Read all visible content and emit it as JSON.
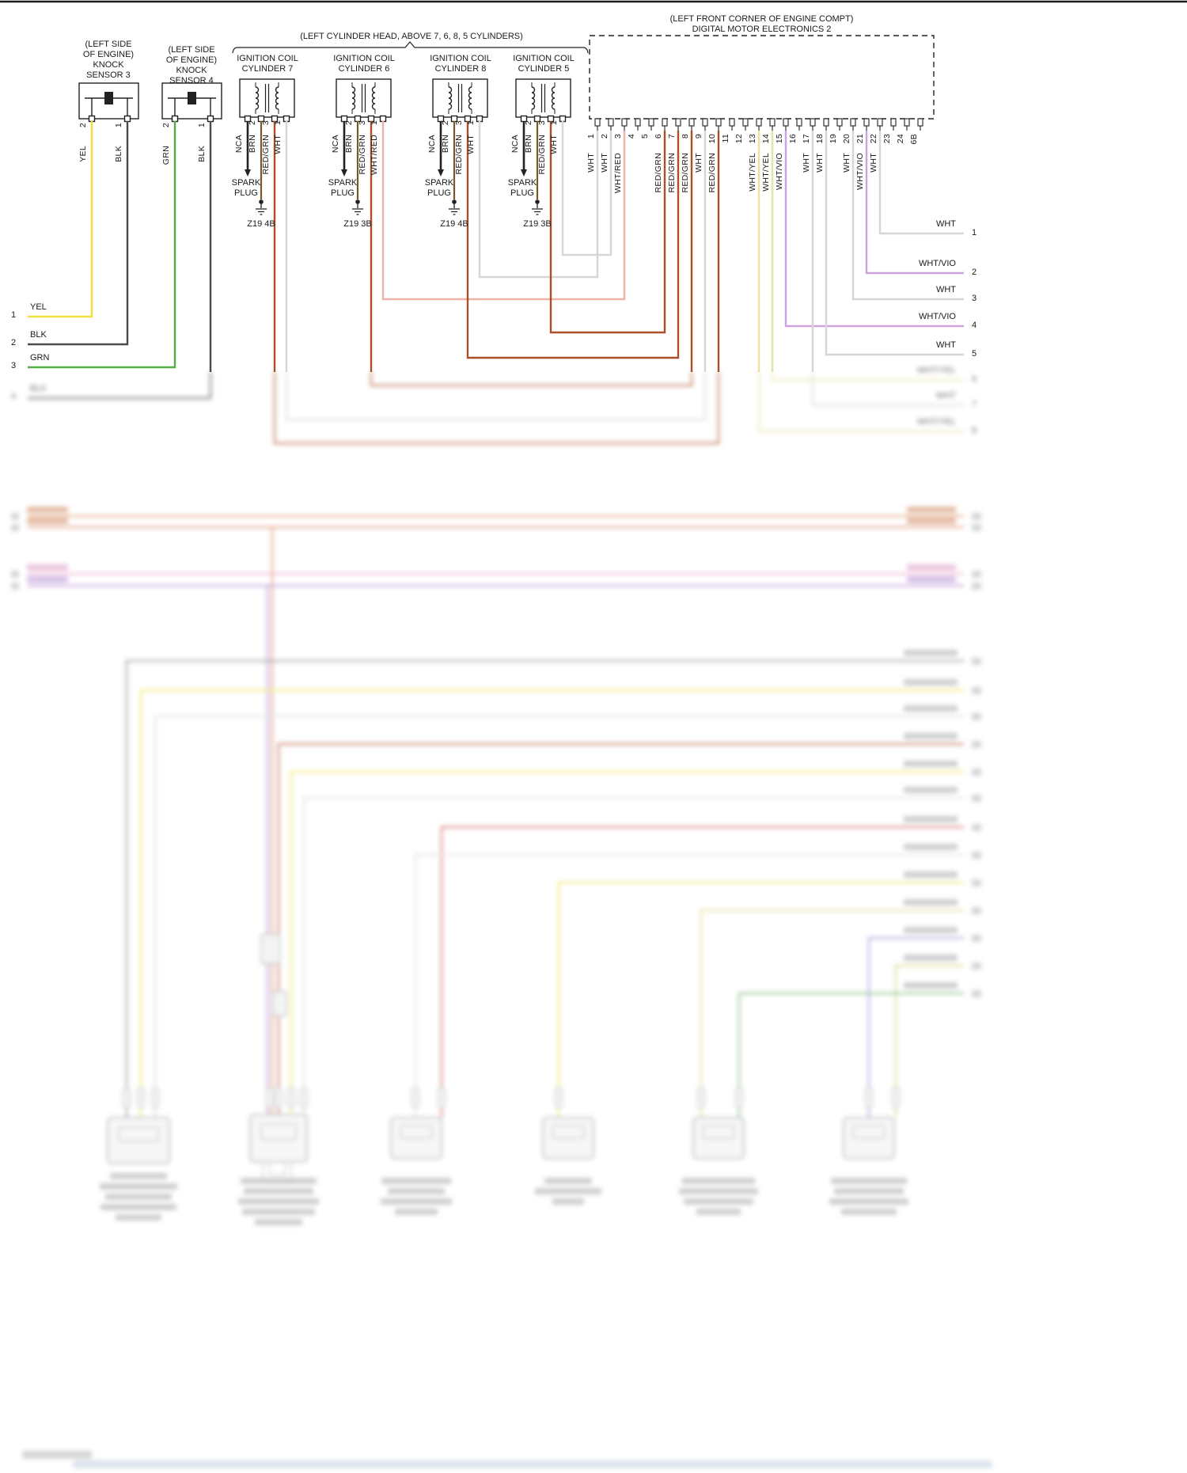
{
  "colors": {
    "yel": "#f2df3a",
    "blk": "#4a4a4a",
    "grn": "#55ad45",
    "wht": "#d6d6d6",
    "wht_red": "#eeb2a6",
    "wht_vio": "#cda3de",
    "wht_yel": "#e9e2a2",
    "red_grn": "#ac4f28",
    "brn": "#77582a"
  },
  "knock_sensors": [
    {
      "location": [
        "(LEFT SIDE",
        "OF ENGINE)"
      ],
      "name": [
        "KNOCK",
        "SENSOR 3"
      ],
      "pins": [
        {
          "num": "2",
          "wire": "YEL"
        },
        {
          "num": "1",
          "wire": "BLK"
        }
      ]
    },
    {
      "location": [
        "(LEFT SIDE",
        "OF ENGINE)"
      ],
      "name": [
        "KNOCK",
        "SENSOR 4"
      ],
      "pins": [
        {
          "num": "2",
          "wire": "GRN"
        },
        {
          "num": "1",
          "wire": "BLK"
        }
      ]
    }
  ],
  "left_edge_wires": [
    {
      "num": "1",
      "label": "YEL"
    },
    {
      "num": "2",
      "label": "BLK"
    },
    {
      "num": "3",
      "label": "GRN"
    }
  ],
  "blurred_left_edge_wire": {
    "num": "4",
    "label": "BLK"
  },
  "cylinder_head_note": "(LEFT CYLINDER HEAD, ABOVE 7, 6, 8, 5 CYLINDERS)",
  "ignition_coils": [
    {
      "title": [
        "IGNITION COIL",
        "CYLINDER 7"
      ],
      "wires": [
        {
          "label": "NCA"
        },
        {
          "num": "2",
          "label": "BRN"
        },
        {
          "num": "3",
          "label": "RED/GRN"
        },
        {
          "num": "1",
          "label": "WHT"
        }
      ],
      "spark_plug": [
        "SPARK",
        "PLUG"
      ],
      "ground": "Z19 4B"
    },
    {
      "title": [
        "IGNITION COIL",
        "CYLINDER 6"
      ],
      "wires": [
        {
          "label": "NCA"
        },
        {
          "num": "2",
          "label": "BRN"
        },
        {
          "num": "3",
          "label": "RED/GRN"
        },
        {
          "num": "1",
          "label": "WHT/RED"
        }
      ],
      "spark_plug": [
        "SPARK",
        "PLUG"
      ],
      "ground": "Z19 3B"
    },
    {
      "title": [
        "IGNITION COIL",
        "CYLINDER 8"
      ],
      "wires": [
        {
          "label": "NCA"
        },
        {
          "num": "2",
          "label": "BRN"
        },
        {
          "num": "3",
          "label": "RED/GRN"
        },
        {
          "num": "1",
          "label": "WHT"
        }
      ],
      "spark_plug": [
        "SPARK",
        "PLUG"
      ],
      "ground": "Z19 4B"
    },
    {
      "title": [
        "IGNITION COIL",
        "CYLINDER 5"
      ],
      "wires": [
        {
          "label": "NCA"
        },
        {
          "num": "2",
          "label": "BRN"
        },
        {
          "num": "3",
          "label": "RED/GRN"
        },
        {
          "num": "1",
          "label": "WHT"
        }
      ],
      "spark_plug": [
        "SPARK",
        "PLUG"
      ],
      "ground": "Z19 3B"
    }
  ],
  "dme": {
    "title": [
      "(LEFT FRONT CORNER OF ENGINE COMPT)",
      "DIGITAL MOTOR ELECTRONICS 2"
    ],
    "pins": [
      {
        "num": "1",
        "label": "WHT"
      },
      {
        "num": "2",
        "label": "WHT"
      },
      {
        "num": "3",
        "label": "WHT/RED"
      },
      {
        "num": "4"
      },
      {
        "num": "5"
      },
      {
        "num": "6",
        "label": "RED/GRN"
      },
      {
        "num": "7",
        "label": "RED/GRN"
      },
      {
        "num": "8",
        "label": "RED/GRN"
      },
      {
        "num": "9",
        "label": "WHT"
      },
      {
        "num": "10",
        "label": "RED/GRN"
      },
      {
        "num": "11"
      },
      {
        "num": "12"
      },
      {
        "num": "13",
        "label": "WHT/YEL"
      },
      {
        "num": "14",
        "label": "WHT/YEL"
      },
      {
        "num": "15",
        "label": "WHT/VIO"
      },
      {
        "num": "16"
      },
      {
        "num": "17",
        "label": "WHT"
      },
      {
        "num": "18",
        "label": "WHT"
      },
      {
        "num": "19"
      },
      {
        "num": "20",
        "label": "WHT"
      },
      {
        "num": "21",
        "label": "WHT/VIO"
      },
      {
        "num": "22",
        "label": "WHT"
      },
      {
        "num": "23"
      },
      {
        "num": "24"
      },
      {
        "num": "6B"
      }
    ]
  },
  "right_edge_wires": [
    {
      "label": "WHT",
      "num": "1"
    },
    {
      "label": "WHT/VIO",
      "num": "2"
    },
    {
      "label": "WHT",
      "num": "3"
    },
    {
      "label": "WHT/VIO",
      "num": "4"
    },
    {
      "label": "WHT",
      "num": "5"
    }
  ],
  "blurred_right_edge_wires": [
    {
      "label": "WHT/YEL",
      "num": "6"
    },
    {
      "label": "WHT",
      "num": "7"
    },
    {
      "label": "WHT/YEL",
      "num": "8"
    }
  ]
}
